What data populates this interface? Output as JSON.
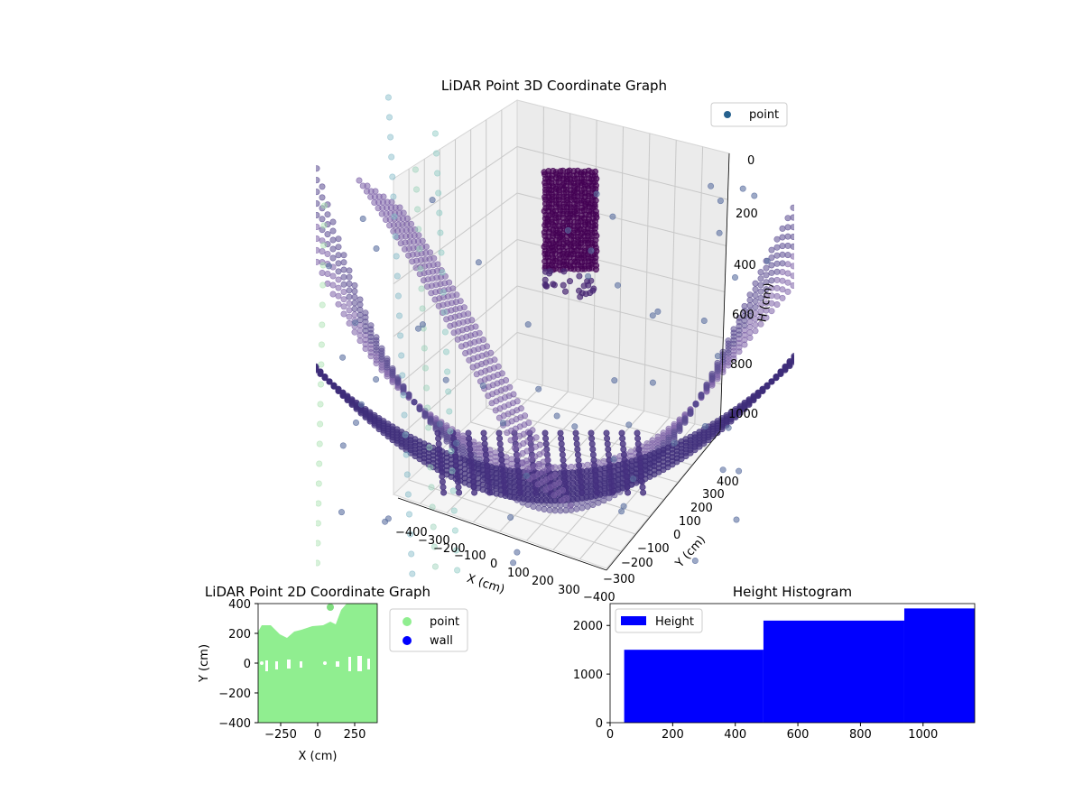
{
  "chart_data": [
    {
      "type": "scatter3d",
      "title": "LiDAR Point 3D Coordinate Graph",
      "xlabel": "X (cm)",
      "ylabel": "Y (cm)",
      "zlabel": "H (cm)",
      "legend": [
        "point"
      ],
      "legend_position": "top-right",
      "x_ticks": [
        "−400",
        "−300",
        "−200",
        "−100",
        "0",
        "100",
        "200",
        "300"
      ],
      "y_ticks": [
        "−400",
        "−300",
        "−200",
        "−100",
        "0",
        "100",
        "200",
        "300",
        "400"
      ],
      "z_ticks": [
        "0",
        "200",
        "400",
        "600",
        "800",
        "1000"
      ],
      "z_inverted": true,
      "grid": true,
      "colormap": "viridis (by height)"
    },
    {
      "type": "scatter",
      "title": "LiDAR Point 2D Coordinate Graph",
      "xlabel": "X (cm)",
      "ylabel": "Y (cm)",
      "xlim": [
        -400,
        400
      ],
      "ylim": [
        -400,
        400
      ],
      "x_ticks": [
        "−250",
        "0",
        "250"
      ],
      "y_ticks": [
        "400",
        "200",
        "0",
        "−200",
        "−400"
      ],
      "legend": [
        "point",
        "wall"
      ],
      "legend_position": "outside right",
      "colors": {
        "point": "#90ee90",
        "wall": "#0000ff"
      }
    },
    {
      "type": "bar",
      "title": "Height Histogram",
      "legend": [
        "Height"
      ],
      "legend_position": "top-left",
      "bins": [
        {
          "from": 45,
          "to": 490,
          "value": 1500
        },
        {
          "from": 490,
          "to": 940,
          "value": 2100
        },
        {
          "from": 940,
          "to": 1165,
          "value": 2350
        }
      ],
      "xlim": [
        0,
        1165
      ],
      "ylim": [
        0,
        2450
      ],
      "x_ticks": [
        "0",
        "200",
        "400",
        "600",
        "800",
        "1000"
      ],
      "y_ticks": [
        "0",
        "1000",
        "2000"
      ],
      "color": "#0000ff"
    }
  ]
}
